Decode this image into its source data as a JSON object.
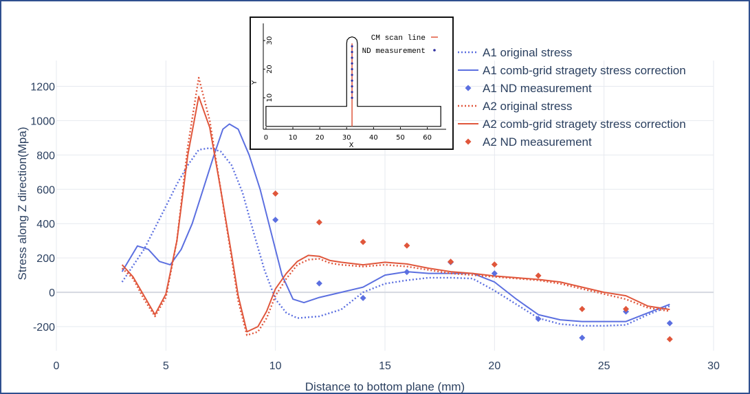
{
  "chart_data": [
    {
      "type": "line",
      "xlabel": "Distance to bottom plane (mm)",
      "ylabel": "Stress along Z direction(Mpa)",
      "xlim": [
        0,
        30
      ],
      "ylim": [
        -340,
        1350
      ],
      "xticks": [
        0,
        5,
        10,
        15,
        20,
        25,
        30
      ],
      "yticks": [
        -200,
        0,
        200,
        400,
        600,
        800,
        1000,
        1200
      ],
      "grid": true,
      "legend_position": "top-right",
      "colors": {
        "A1": "#5b6fe0",
        "A2": "#e0563b"
      },
      "series": [
        {
          "name": "A1 original stress",
          "style": "dotted",
          "color": "#5b6fe0",
          "x": [
            3,
            4,
            5,
            5.5,
            6,
            6.5,
            7,
            7.5,
            8,
            8.5,
            9,
            9.5,
            10,
            10.5,
            11,
            12,
            13,
            14,
            15,
            16,
            17,
            18,
            19,
            20,
            21,
            22,
            23,
            24,
            25,
            26,
            27,
            28
          ],
          "y": [
            60,
            250,
            500,
            630,
            740,
            830,
            840,
            820,
            740,
            580,
            350,
            130,
            -40,
            -120,
            -150,
            -140,
            -100,
            0,
            50,
            70,
            85,
            85,
            80,
            10,
            -70,
            -150,
            -185,
            -195,
            -195,
            -190,
            -130,
            -80
          ]
        },
        {
          "name": "A1 comb-grid stragety stress correction",
          "style": "solid",
          "color": "#5b6fe0",
          "x": [
            3,
            3.7,
            4.2,
            4.7,
            5.2,
            5.7,
            6.2,
            6.7,
            7.2,
            7.6,
            7.9,
            8.3,
            8.8,
            9.3,
            9.8,
            10.3,
            10.8,
            11.3,
            12,
            13,
            14,
            15,
            16,
            17,
            18,
            19,
            20,
            21,
            22,
            23,
            24,
            25,
            26,
            27,
            28
          ],
          "y": [
            120,
            270,
            250,
            180,
            160,
            250,
            400,
            600,
            800,
            950,
            980,
            950,
            800,
            600,
            350,
            100,
            -40,
            -60,
            -30,
            0,
            30,
            100,
            120,
            110,
            110,
            110,
            60,
            -40,
            -130,
            -160,
            -170,
            -170,
            -170,
            -120,
            -70
          ]
        },
        {
          "name": "A1 ND measurement",
          "style": "markers",
          "color": "#5b6fe0",
          "x": [
            10,
            12,
            14,
            16,
            18,
            20,
            22,
            24,
            26,
            28
          ],
          "y": [
            422,
            52,
            -33,
            118,
            175,
            110,
            -155,
            -265,
            -112,
            -180
          ]
        },
        {
          "name": "A2 original stress",
          "style": "dotted",
          "color": "#e0563b",
          "x": [
            3,
            3.5,
            4,
            4.5,
            5,
            5.5,
            6,
            6.5,
            7,
            7.5,
            8,
            8.3,
            8.7,
            9.2,
            9.6,
            10,
            10.5,
            11,
            11.5,
            12,
            12.5,
            13,
            14,
            15,
            16,
            17,
            18,
            19,
            20,
            21,
            22,
            23,
            24,
            25,
            26,
            27,
            28
          ],
          "y": [
            140,
            80,
            -40,
            -140,
            -30,
            300,
            850,
            1250,
            1000,
            600,
            200,
            -50,
            -250,
            -230,
            -150,
            -20,
            80,
            160,
            190,
            195,
            170,
            160,
            150,
            160,
            150,
            130,
            110,
            100,
            90,
            80,
            70,
            50,
            20,
            -10,
            -40,
            -90,
            -110
          ]
        },
        {
          "name": "A2 comb-grid stragety stress correction",
          "style": "solid",
          "color": "#e0563b",
          "x": [
            3,
            3.5,
            4,
            4.5,
            5,
            5.5,
            6,
            6.5,
            7,
            7.5,
            8,
            8.3,
            8.7,
            9.2,
            9.6,
            10,
            10.5,
            11,
            11.5,
            12,
            12.5,
            13,
            14,
            15,
            16,
            17,
            18,
            19,
            20,
            21,
            22,
            23,
            24,
            25,
            26,
            27,
            28
          ],
          "y": [
            160,
            90,
            -20,
            -130,
            -10,
            300,
            800,
            1140,
            960,
            600,
            220,
            -20,
            -230,
            -200,
            -110,
            20,
            110,
            180,
            215,
            210,
            185,
            175,
            160,
            175,
            165,
            140,
            120,
            110,
            95,
            85,
            75,
            60,
            30,
            0,
            -20,
            -80,
            -100
          ]
        },
        {
          "name": "A2 ND measurement",
          "style": "markers",
          "color": "#e0563b",
          "x": [
            10,
            12,
            14,
            16,
            18,
            20,
            22,
            24,
            26,
            28
          ],
          "y": [
            575,
            408,
            293,
            272,
            178,
            162,
            97,
            -97,
            -97,
            -273
          ]
        }
      ]
    },
    {
      "type": "scatter",
      "xlabel": "X",
      "ylabel": "Y",
      "xlim": [
        -1,
        67
      ],
      "ylim": [
        -1,
        36
      ],
      "xticks": [
        0,
        10,
        20,
        30,
        40,
        50,
        60
      ],
      "yticks": [
        10,
        20,
        30
      ],
      "legend_position": "top-right",
      "outline": [
        [
          0,
          0
        ],
        [
          65,
          0
        ],
        [
          65,
          7
        ],
        [
          34,
          7
        ],
        [
          34,
          29
        ],
        [
          33.8,
          30.2
        ],
        [
          33,
          31
        ],
        [
          32,
          31.3
        ],
        [
          31,
          31
        ],
        [
          30.2,
          30.2
        ],
        [
          30,
          29
        ],
        [
          30,
          7
        ],
        [
          0,
          7
        ],
        [
          0,
          0
        ]
      ],
      "series": [
        {
          "name": "CM scan line",
          "style": "line",
          "color": "#e0563b",
          "x": [
            32,
            32
          ],
          "y": [
            0,
            29
          ]
        },
        {
          "name": "ND measurement",
          "style": "markers",
          "color": "#3030a0",
          "x": [
            32,
            32,
            32,
            32,
            32,
            32,
            32,
            32,
            32,
            32
          ],
          "y": [
            10,
            12,
            14,
            16,
            18,
            20,
            22,
            24,
            26,
            28
          ]
        }
      ]
    }
  ]
}
